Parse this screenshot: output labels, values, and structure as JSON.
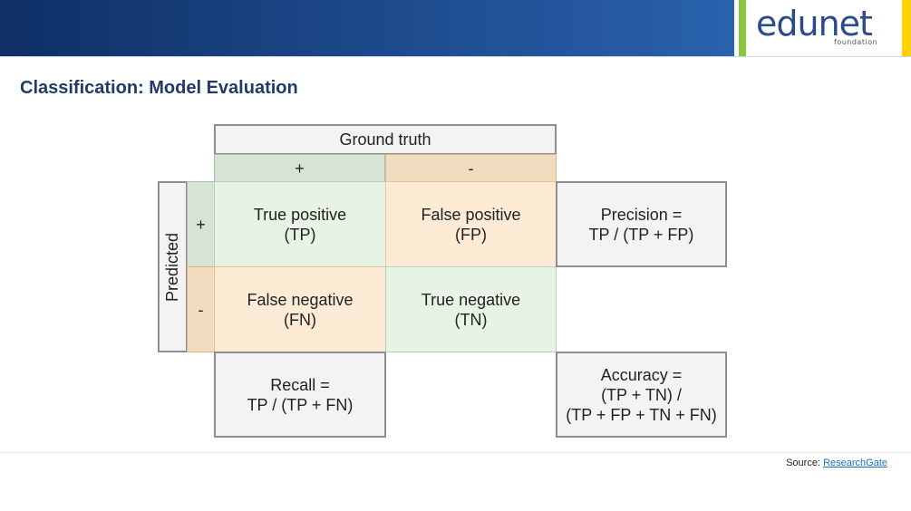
{
  "header": {
    "logo_text": "edunet",
    "logo_subtext": "foundation"
  },
  "page_title": "Classification: Model Evaluation",
  "matrix": {
    "ground_truth_label": "Ground truth",
    "predicted_label": "Predicted",
    "col_pos": "+",
    "col_neg": "-",
    "row_pos": "+",
    "row_neg": "-",
    "tp": {
      "name": "True positive",
      "abbr": "(TP)"
    },
    "fp": {
      "name": "False positive",
      "abbr": "(FP)"
    },
    "fn": {
      "name": "False negative",
      "abbr": "(FN)"
    },
    "tn": {
      "name": "True negative",
      "abbr": "(TN)"
    },
    "precision": {
      "line1": "Precision =",
      "line2": "TP / (TP + FP)"
    },
    "recall": {
      "line1": "Recall =",
      "line2": "TP / (TP + FN)"
    },
    "accuracy": {
      "line1": "Accuracy =",
      "line2": "(TP + TN) /",
      "line3": "(TP + FP + TN + FN)"
    }
  },
  "source": {
    "label": "Source:",
    "link_text": "ResearchGate"
  },
  "colors": {
    "banner": "#1b4687",
    "title": "#1f3b68",
    "positive_fill": "#e7f3e4",
    "negative_fill": "#fdebd5"
  }
}
